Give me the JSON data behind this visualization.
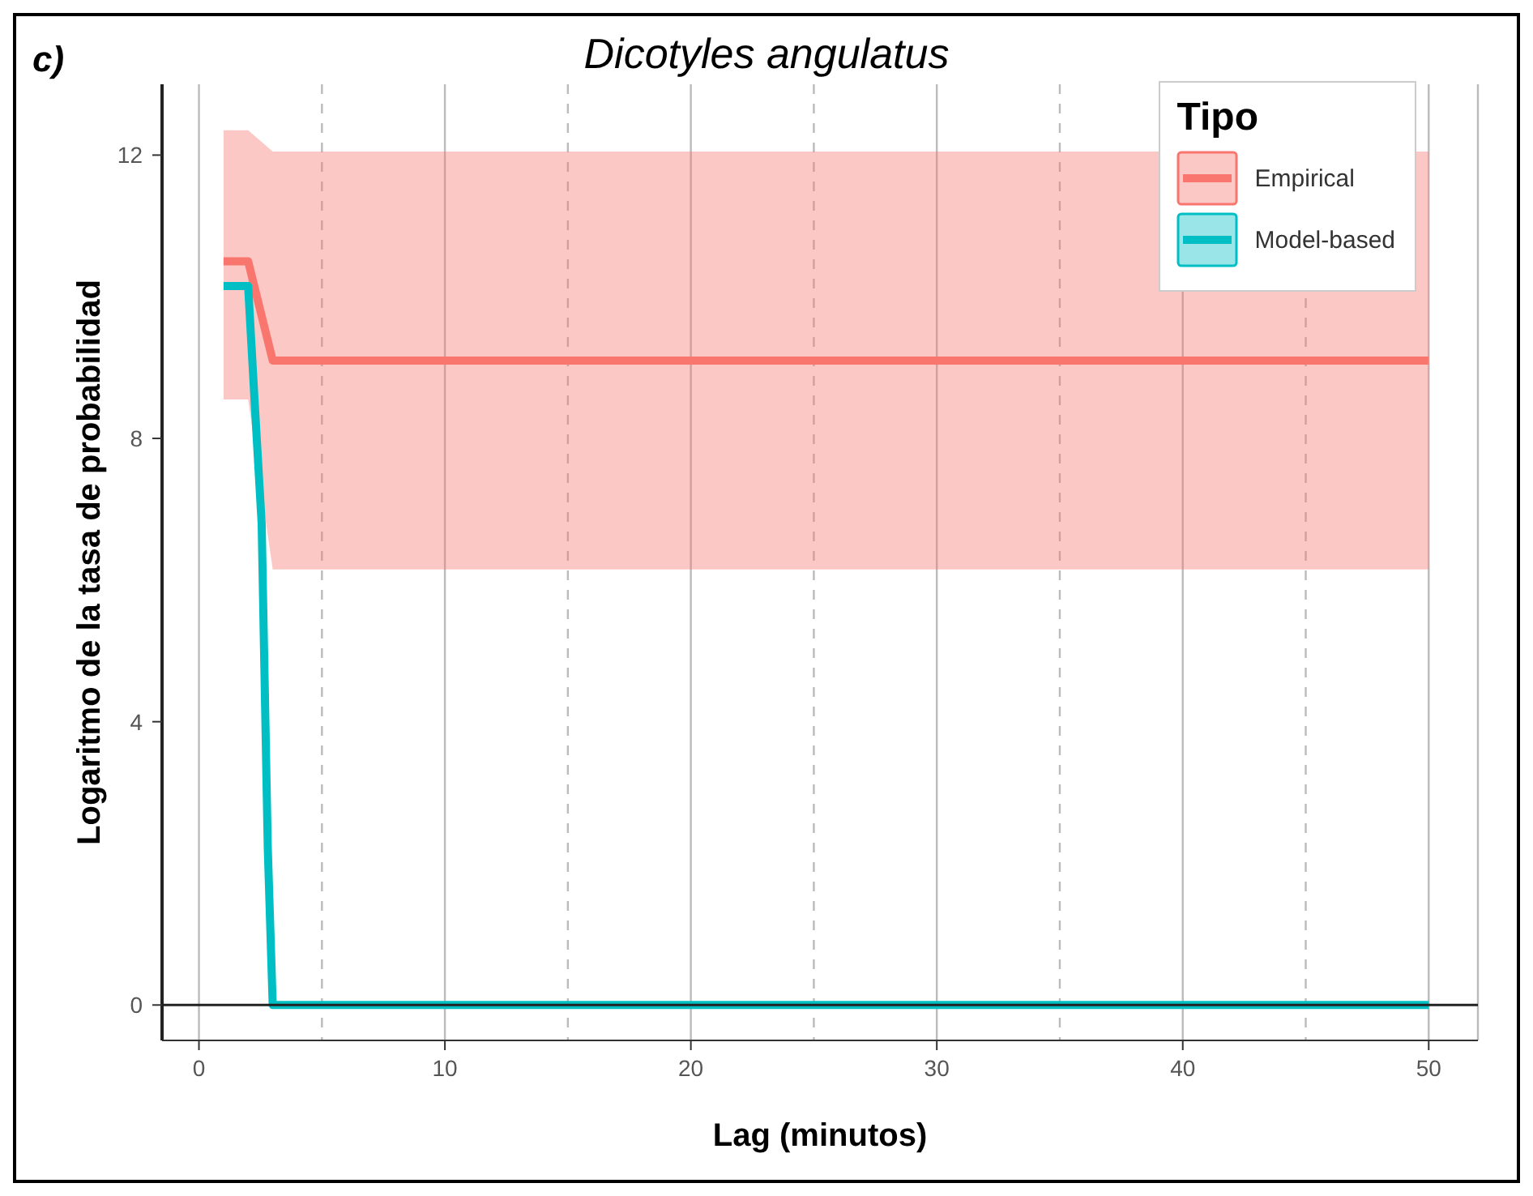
{
  "chart_data": {
    "type": "line",
    "title": "Dicotyles angulatus",
    "annotations": [
      "c)"
    ],
    "xlabel": "Lag (minutos)",
    "ylabel": "Logaritmo de la tasa de probabilidad",
    "legend_title": "Tipo",
    "legend": "top right",
    "grid": "x",
    "xlim": [
      -1.5,
      52
    ],
    "ylim": [
      -0.5,
      13
    ],
    "xticks": [
      0,
      {
        "value": 5,
        "label": null
      },
      10,
      {
        "value": 15,
        "label": null
      },
      20,
      {
        "value": 25,
        "label": null
      },
      30,
      {
        "value": 35,
        "label": null
      },
      40,
      {
        "value": 45,
        "label": null
      },
      50
    ],
    "yticks": [
      0,
      4,
      8,
      12
    ],
    "ref_lines": [
      {
        "axis": "y",
        "value": 0,
        "color": "#222222"
      }
    ],
    "series": [
      {
        "name": "Empirical",
        "color": "#f8766d",
        "x": [
          1,
          2,
          3,
          50
        ],
        "values": [
          10.5,
          10.5,
          9.1,
          9.1
        ],
        "lower": [
          8.55,
          8.55,
          6.15,
          6.15
        ],
        "upper": [
          12.35,
          12.35,
          12.05,
          12.05
        ]
      },
      {
        "name": "Model-based",
        "color": "#00bfc4",
        "x": [
          1,
          2,
          2.3,
          2.55,
          2.8,
          3,
          50
        ],
        "values": [
          10.15,
          10.15,
          8.3,
          6.8,
          2.2,
          0,
          0
        ]
      }
    ]
  }
}
